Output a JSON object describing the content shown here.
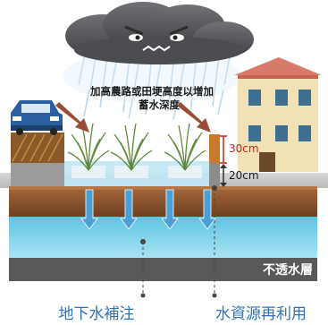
{
  "caption_top_line1": "加高農路或田埂高度以增加",
  "caption_top_line2": "蓄水深度",
  "height_label_upper": "30cm",
  "height_label_lower": "20cm",
  "impermeable_layer_label": "不透水層",
  "bottom_label_left": "地下水補注",
  "bottom_label_right": "水資源再利用",
  "colors": {
    "storm_cloud": "#5d5f63",
    "rain": "#9ec7e4",
    "soil": "#8a5530",
    "groundwater": "#7fd0ea",
    "impermeable": "#595959",
    "accent_red": "#d21f1f",
    "label_blue": "#2f73b5",
    "car_blue": "#2a5fa0",
    "arrow_brown": "#9a4b36"
  }
}
